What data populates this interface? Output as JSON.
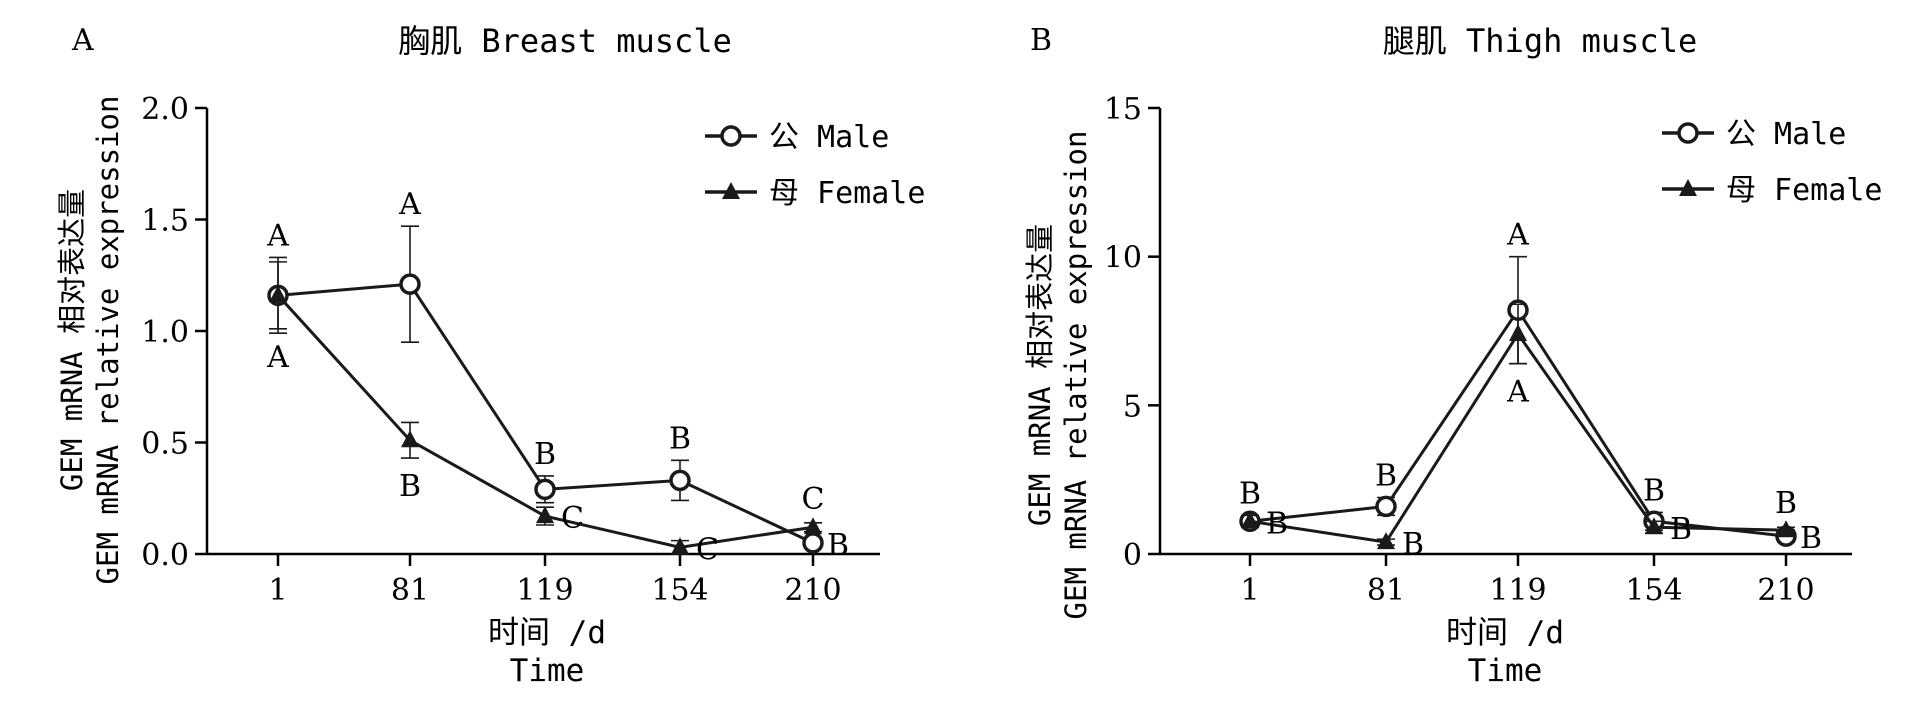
{
  "chart_data": [
    {
      "type": "line",
      "panel_label": "A",
      "title": "胸肌 Breast muscle",
      "ylabel_line1": "GEM mRNA 相对表达量",
      "ylabel_line2": "GEM mRNA relative expression",
      "xlabel_line1": "时间 /d",
      "xlabel_line2": "Time",
      "categories": [
        "1",
        "81",
        "119",
        "154",
        "210"
      ],
      "ylim": [
        0,
        2.0
      ],
      "yticks": [
        0.0,
        0.5,
        1.0,
        1.5,
        2.0
      ],
      "ytick_labels": [
        "0.0",
        "0.5",
        "1.0",
        "1.5",
        "2.0"
      ],
      "legend_position": "top-right",
      "series": [
        {
          "name": "公 Male",
          "marker": "circle-open",
          "values": [
            1.16,
            1.21,
            0.29,
            0.33,
            0.05
          ],
          "errors": [
            0.17,
            0.26,
            0.06,
            0.09,
            0.02
          ],
          "letters": [
            "A",
            "A",
            "B",
            "B",
            "B"
          ]
        },
        {
          "name": "母 Female",
          "marker": "triangle",
          "values": [
            1.16,
            0.51,
            0.17,
            0.03,
            0.12
          ],
          "errors": [
            0.15,
            0.08,
            0.04,
            0.03,
            0.02
          ],
          "letters": [
            "A",
            "B",
            "C",
            "C",
            "C"
          ]
        }
      ]
    },
    {
      "type": "line",
      "panel_label": "B",
      "title": "腿肌 Thigh muscle",
      "ylabel_line1": "GEM mRNA 相对表达量",
      "ylabel_line2": "GEM mRNA relative expression",
      "xlabel_line1": "时间 /d",
      "xlabel_line2": "Time",
      "categories": [
        "1",
        "81",
        "119",
        "154",
        "210"
      ],
      "ylim": [
        0,
        15
      ],
      "yticks": [
        0,
        5,
        10,
        15
      ],
      "ytick_labels": [
        "0",
        "5",
        "10",
        "15"
      ],
      "legend_position": "top-right",
      "series": [
        {
          "name": "公 Male",
          "marker": "circle-open",
          "values": [
            1.1,
            1.6,
            8.2,
            1.1,
            0.6
          ],
          "errors": [
            0.2,
            0.3,
            1.8,
            0.3,
            0.2
          ],
          "letters": [
            "B",
            "B",
            "A",
            "B",
            "B"
          ]
        },
        {
          "name": "母 Female",
          "marker": "triangle",
          "values": [
            1.1,
            0.4,
            7.4,
            0.9,
            0.8
          ],
          "errors": [
            0.2,
            0.1,
            1.0,
            0.2,
            0.1
          ],
          "letters": [
            "B",
            "B",
            "A",
            "B",
            "B"
          ]
        }
      ]
    }
  ]
}
